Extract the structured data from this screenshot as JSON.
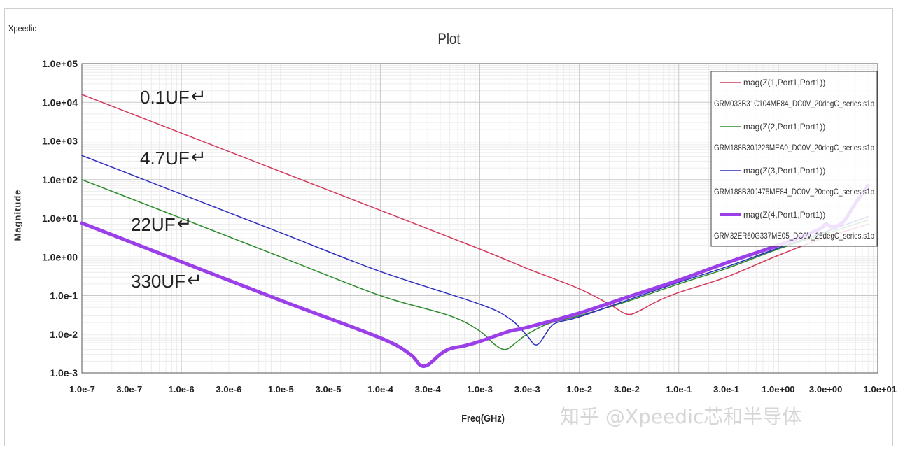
{
  "brand": "Xpeedic",
  "watermark": "知乎 @Xpeedic芯和半导体",
  "chart_data": {
    "type": "line",
    "title": "Plot",
    "xlabel": "Freq(GHz)",
    "ylabel": "Magnitude",
    "xscale": "log",
    "yscale": "log",
    "xlim": [
      1e-07,
      10
    ],
    "ylim": [
      0.001,
      100000
    ],
    "x_ticks": [
      1e-07,
      3e-07,
      1e-06,
      3e-06,
      1e-05,
      3e-05,
      0.0001,
      0.0003,
      0.001,
      0.003,
      0.01,
      0.03,
      0.1,
      0.3,
      1,
      3,
      10
    ],
    "x_tick_labels": [
      "1.0e-7",
      "3.0e-7",
      "1.0e-6",
      "3.0e-6",
      "1.0e-5",
      "3.0e-5",
      "1.0e-4",
      "3.0e-4",
      "1.0e-3",
      "3.0e-3",
      "1.0e-2",
      "3.0e-2",
      "1.0e-1",
      "3.0e-1",
      "1.0e+00",
      "3.0e+00",
      "1.0e+01"
    ],
    "y_ticks": [
      100000.0,
      10000.0,
      1000.0,
      100.0,
      10.0,
      1,
      0.1,
      0.01,
      0.001
    ],
    "y_tick_labels": [
      "1.0e+05",
      "1.0e+04",
      "1.0e+03",
      "1.0e+02",
      "1.0e+01",
      "1.0e+00",
      "1.0e-1",
      "1.0e-2",
      "1.0e-3"
    ],
    "grid": true,
    "legend_position": "top-right",
    "series": [
      {
        "name": "mag(Z(1,Port1,Port1))",
        "file": "GRM033B31C104ME84_DC0V_20degC_series.s1p",
        "caption": "0.1UF",
        "color": "#d23a5c",
        "width": 1.5,
        "points": [
          [
            1e-07,
            16000
          ],
          [
            1e-06,
            1600
          ],
          [
            1e-05,
            160
          ],
          [
            0.0001,
            16
          ],
          [
            0.001,
            1.6
          ],
          [
            0.003,
            0.5
          ],
          [
            0.01,
            0.15
          ],
          [
            0.02,
            0.06
          ],
          [
            0.03,
            0.033
          ],
          [
            0.04,
            0.04
          ],
          [
            0.06,
            0.07
          ],
          [
            0.1,
            0.12
          ],
          [
            0.3,
            0.3
          ],
          [
            1,
            1.1
          ],
          [
            3,
            3.2
          ],
          [
            8,
            7
          ]
        ]
      },
      {
        "name": "mag(Z(2,Port1,Port1))",
        "file": "GRM188B30J226MEA0_DC0V_20degC_series.s1p",
        "caption": "22UF",
        "color": "#2e8b2e",
        "width": 1.5,
        "points": [
          [
            1e-07,
            100
          ],
          [
            1e-06,
            10
          ],
          [
            1e-05,
            1
          ],
          [
            0.0001,
            0.1
          ],
          [
            0.0005,
            0.03
          ],
          [
            0.001,
            0.012
          ],
          [
            0.0014,
            0.0055
          ],
          [
            0.0018,
            0.004
          ],
          [
            0.0023,
            0.006
          ],
          [
            0.003,
            0.01
          ],
          [
            0.005,
            0.019
          ],
          [
            0.01,
            0.03
          ],
          [
            0.03,
            0.07
          ],
          [
            0.1,
            0.2
          ],
          [
            0.3,
            0.5
          ],
          [
            1,
            1.6
          ],
          [
            3,
            4
          ],
          [
            8,
            9
          ]
        ]
      },
      {
        "name": "mag(Z(3,Port1,Port1))",
        "file": "GRM188B30J475ME84_DC0V_20degC_series.s1p",
        "caption": "4.7UF",
        "color": "#2d2dbf",
        "width": 1.5,
        "points": [
          [
            1e-07,
            420
          ],
          [
            1e-06,
            42
          ],
          [
            1e-05,
            4.2
          ],
          [
            0.0001,
            0.42
          ],
          [
            0.001,
            0.06
          ],
          [
            0.002,
            0.025
          ],
          [
            0.003,
            0.009
          ],
          [
            0.0035,
            0.0055
          ],
          [
            0.004,
            0.006
          ],
          [
            0.005,
            0.014
          ],
          [
            0.006,
            0.02
          ],
          [
            0.01,
            0.028
          ],
          [
            0.03,
            0.075
          ],
          [
            0.1,
            0.22
          ],
          [
            0.3,
            0.55
          ],
          [
            1,
            1.7
          ],
          [
            3,
            4.5
          ],
          [
            8,
            11
          ]
        ]
      },
      {
        "name": "mag(Z(4,Port1,Port1))",
        "file": "GRM32ER60G337ME05_DC0V_25degC_series.s1p",
        "caption": "330UF",
        "color": "#9b3fe8",
        "width": 5,
        "points": [
          [
            1e-07,
            7.5
          ],
          [
            1e-06,
            0.75
          ],
          [
            1e-05,
            0.075
          ],
          [
            0.0001,
            0.008
          ],
          [
            0.0002,
            0.003
          ],
          [
            0.00025,
            0.0016
          ],
          [
            0.0003,
            0.0016
          ],
          [
            0.0004,
            0.003
          ],
          [
            0.0005,
            0.0042
          ],
          [
            0.0007,
            0.005
          ],
          [
            0.001,
            0.0065
          ],
          [
            0.002,
            0.012
          ],
          [
            0.003,
            0.015
          ],
          [
            0.01,
            0.035
          ],
          [
            0.03,
            0.09
          ],
          [
            0.1,
            0.25
          ],
          [
            0.3,
            0.7
          ],
          [
            1,
            2
          ],
          [
            2.5,
            5
          ],
          [
            3,
            7
          ],
          [
            3.5,
            6
          ],
          [
            4.5,
            8
          ],
          [
            6,
            25
          ],
          [
            8,
            70
          ]
        ]
      }
    ]
  }
}
